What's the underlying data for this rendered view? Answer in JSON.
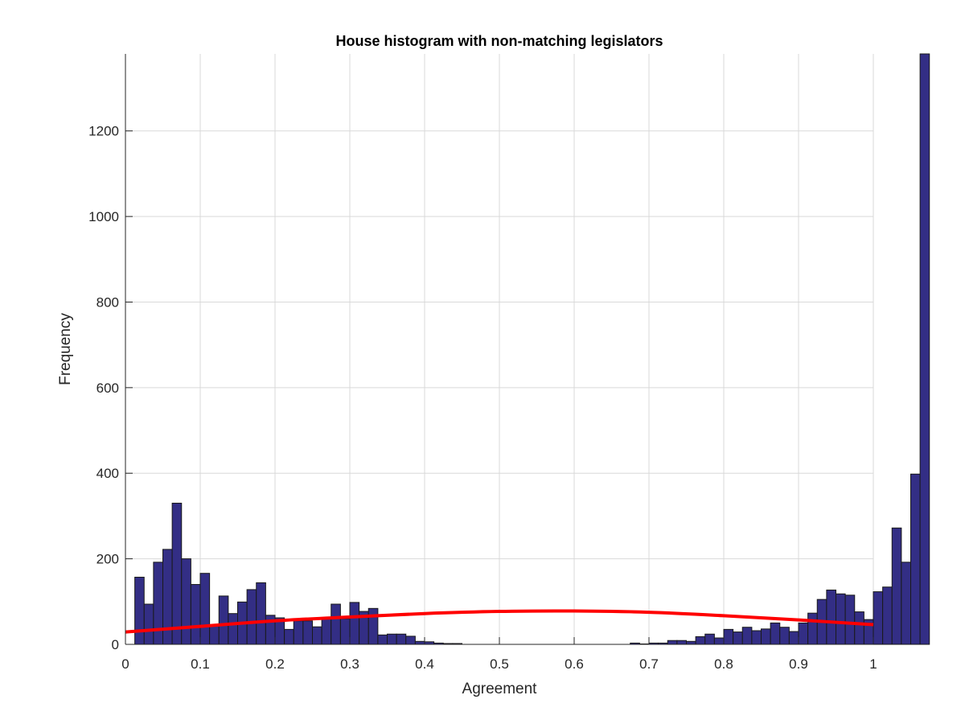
{
  "chart_data": {
    "type": "bar",
    "title": "House  histogram with non-matching legislators",
    "xlabel": "Agreement",
    "ylabel": "Frequency",
    "xlim": [
      0,
      1
    ],
    "ylim": [
      0,
      1380
    ],
    "grid": true,
    "bar_color": "#332e85",
    "bar_edge_color": "#1a1a1a",
    "fit_color": "#ff0000",
    "xticks": [
      0,
      0.1,
      0.2,
      0.3,
      0.4,
      0.5,
      0.6,
      0.7,
      0.8,
      0.9,
      1
    ],
    "xtick_labels": [
      "0",
      "0.1",
      "0.2",
      "0.3",
      "0.4",
      "0.5",
      "0.6",
      "0.7",
      "0.8",
      "0.9",
      "1"
    ],
    "yticks": [
      0,
      200,
      400,
      600,
      800,
      1000,
      1200
    ],
    "ytick_labels": [
      "0",
      "200",
      "400",
      "600",
      "800",
      "1000",
      "1200"
    ],
    "bin_width": 0.0125,
    "bin_start": 0.0125,
    "values": [
      157,
      94,
      192,
      222,
      330,
      200,
      140,
      166,
      46,
      113,
      72,
      99,
      128,
      144,
      68,
      62,
      35,
      55,
      55,
      41,
      62,
      94,
      60,
      98,
      77,
      84,
      22,
      24,
      24,
      19,
      7,
      6,
      3,
      2,
      2,
      0,
      0,
      0,
      0,
      0,
      0,
      0,
      0,
      0,
      0,
      0,
      0,
      0,
      0,
      0,
      0,
      0,
      0,
      3,
      1,
      3,
      3,
      9,
      9,
      7,
      18,
      24,
      15,
      35,
      29,
      40,
      32,
      36,
      50,
      40,
      30,
      50,
      73,
      105,
      127,
      118,
      115,
      76,
      58,
      123,
      134,
      272,
      192,
      398,
      1385
    ],
    "fit": {
      "x": [
        0,
        0.1,
        0.2,
        0.3,
        0.4,
        0.5,
        0.6,
        0.7,
        0.8,
        0.9,
        1.0
      ],
      "y": [
        29,
        42,
        55,
        64,
        72,
        77,
        78,
        75,
        67,
        57,
        46
      ]
    }
  }
}
